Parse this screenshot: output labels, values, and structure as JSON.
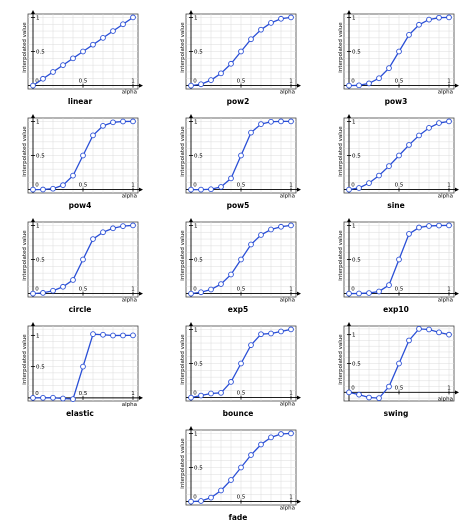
{
  "colors": {
    "line": "#2a4fd6",
    "marker_fill": "#ffffff",
    "axis": "#000000",
    "grid": "#dcdcdc"
  },
  "chart_data": [
    {
      "type": "line",
      "title": "linear",
      "xlabel": "alpha",
      "ylabel": "interpolated value",
      "x_ticks": [
        "0",
        "0.5",
        "1"
      ],
      "y_ticks": [
        "0",
        "0.5",
        "1"
      ],
      "xlim": [
        -0.05,
        1.05
      ],
      "ylim": [
        -0.05,
        1.05
      ],
      "grid": true,
      "x": [
        0,
        0.1,
        0.2,
        0.3,
        0.4,
        0.5,
        0.6,
        0.7,
        0.8,
        0.9,
        1
      ],
      "values": [
        0,
        0.1,
        0.2,
        0.3,
        0.4,
        0.5,
        0.6,
        0.7,
        0.8,
        0.9,
        1
      ]
    },
    {
      "type": "line",
      "title": "pow2",
      "xlabel": "alpha",
      "ylabel": "interpolated value",
      "x_ticks": [
        "0",
        "0.5",
        "1"
      ],
      "y_ticks": [
        "0",
        "0.5",
        "1"
      ],
      "xlim": [
        -0.05,
        1.05
      ],
      "ylim": [
        -0.05,
        1.05
      ],
      "grid": true,
      "x": [
        0,
        0.1,
        0.2,
        0.3,
        0.4,
        0.5,
        0.6,
        0.7,
        0.8,
        0.9,
        1
      ],
      "values": [
        0,
        0.02,
        0.08,
        0.18,
        0.32,
        0.5,
        0.68,
        0.82,
        0.92,
        0.98,
        1
      ]
    },
    {
      "type": "line",
      "title": "pow3",
      "xlabel": "alpha",
      "ylabel": "interpolated value",
      "x_ticks": [
        "0",
        "0.5",
        "1"
      ],
      "y_ticks": [
        "0",
        "0.5",
        "1"
      ],
      "xlim": [
        -0.05,
        1.05
      ],
      "ylim": [
        -0.05,
        1.05
      ],
      "grid": true,
      "x": [
        0,
        0.1,
        0.2,
        0.3,
        0.4,
        0.5,
        0.6,
        0.7,
        0.8,
        0.9,
        1
      ],
      "values": [
        0,
        0.004,
        0.032,
        0.108,
        0.256,
        0.5,
        0.744,
        0.892,
        0.968,
        0.996,
        1
      ]
    },
    {
      "type": "line",
      "title": "pow4",
      "xlabel": "alpha",
      "ylabel": "interpolated value",
      "x_ticks": [
        "0",
        "0.5",
        "1"
      ],
      "y_ticks": [
        "0",
        "0.5",
        "1"
      ],
      "xlim": [
        -0.05,
        1.05
      ],
      "ylim": [
        -0.05,
        1.05
      ],
      "grid": true,
      "x": [
        0,
        0.1,
        0.2,
        0.3,
        0.4,
        0.5,
        0.6,
        0.7,
        0.8,
        0.9,
        1
      ],
      "values": [
        0,
        0.001,
        0.013,
        0.065,
        0.205,
        0.5,
        0.795,
        0.935,
        0.987,
        0.999,
        1
      ]
    },
    {
      "type": "line",
      "title": "pow5",
      "xlabel": "alpha",
      "ylabel": "interpolated value",
      "x_ticks": [
        "0",
        "0.5",
        "1"
      ],
      "y_ticks": [
        "0",
        "0.5",
        "1"
      ],
      "xlim": [
        -0.05,
        1.05
      ],
      "ylim": [
        -0.05,
        1.05
      ],
      "grid": true,
      "x": [
        0,
        0.1,
        0.2,
        0.3,
        0.4,
        0.5,
        0.6,
        0.7,
        0.8,
        0.9,
        1
      ],
      "values": [
        0,
        0,
        0.005,
        0.039,
        0.164,
        0.5,
        0.836,
        0.961,
        0.995,
        1,
        1
      ]
    },
    {
      "type": "line",
      "title": "sine",
      "xlabel": "alpha",
      "ylabel": "interpolated value",
      "x_ticks": [
        "0",
        "0.5",
        "1"
      ],
      "y_ticks": [
        "0",
        "0.5",
        "1"
      ],
      "xlim": [
        -0.05,
        1.05
      ],
      "ylim": [
        -0.05,
        1.05
      ],
      "grid": true,
      "x": [
        0,
        0.1,
        0.2,
        0.3,
        0.4,
        0.5,
        0.6,
        0.7,
        0.8,
        0.9,
        1
      ],
      "values": [
        0,
        0.024,
        0.095,
        0.206,
        0.345,
        0.5,
        0.655,
        0.794,
        0.905,
        0.976,
        1
      ]
    },
    {
      "type": "line",
      "title": "circle",
      "xlabel": "alpha",
      "ylabel": "interpolated value",
      "x_ticks": [
        "0",
        "0.5",
        "1"
      ],
      "y_ticks": [
        "0",
        "0.5",
        "1"
      ],
      "xlim": [
        -0.05,
        1.05
      ],
      "ylim": [
        -0.05,
        1.05
      ],
      "grid": true,
      "x": [
        0,
        0.1,
        0.2,
        0.3,
        0.4,
        0.5,
        0.6,
        0.7,
        0.8,
        0.9,
        1
      ],
      "values": [
        0,
        0.01,
        0.042,
        0.1,
        0.2,
        0.5,
        0.8,
        0.9,
        0.958,
        0.99,
        1
      ]
    },
    {
      "type": "line",
      "title": "exp5",
      "xlabel": "alpha",
      "ylabel": "interpolated value",
      "x_ticks": [
        "0",
        "0.5",
        "1"
      ],
      "y_ticks": [
        "0",
        "0.5",
        "1"
      ],
      "xlim": [
        -0.05,
        1.05
      ],
      "ylim": [
        -0.05,
        1.05
      ],
      "grid": true,
      "x": [
        0,
        0.1,
        0.2,
        0.3,
        0.4,
        0.5,
        0.6,
        0.7,
        0.8,
        0.9,
        1
      ],
      "values": [
        0,
        0.02,
        0.06,
        0.14,
        0.28,
        0.5,
        0.72,
        0.86,
        0.94,
        0.98,
        1
      ]
    },
    {
      "type": "line",
      "title": "exp10",
      "xlabel": "alpha",
      "ylabel": "interpolated value",
      "x_ticks": [
        "0",
        "0.5",
        "1"
      ],
      "y_ticks": [
        "0",
        "0.5",
        "1"
      ],
      "xlim": [
        -0.05,
        1.05
      ],
      "ylim": [
        -0.05,
        1.05
      ],
      "grid": true,
      "x": [
        0,
        0.1,
        0.2,
        0.3,
        0.4,
        0.5,
        0.6,
        0.7,
        0.8,
        0.9,
        1
      ],
      "values": [
        0,
        0.002,
        0.008,
        0.031,
        0.125,
        0.5,
        0.875,
        0.969,
        0.992,
        0.998,
        1
      ]
    },
    {
      "type": "line",
      "title": "elastic",
      "xlabel": "alpha",
      "ylabel": "interpolated value",
      "x_ticks": [
        "0",
        "0.5",
        "1"
      ],
      "y_ticks": [
        "0",
        "0.5",
        "1"
      ],
      "xlim": [
        -0.05,
        1.05
      ],
      "ylim": [
        -0.05,
        1.15
      ],
      "grid": true,
      "x": [
        0,
        0.1,
        0.2,
        0.3,
        0.4,
        0.5,
        0.6,
        0.7,
        0.8,
        0.9,
        1
      ],
      "values": [
        0,
        0.001,
        0.002,
        -0.01,
        -0.02,
        0.5,
        1.02,
        1.01,
        0.998,
        0.999,
        1
      ]
    },
    {
      "type": "line",
      "title": "bounce",
      "xlabel": "alpha",
      "ylabel": "interpolated value",
      "x_ticks": [
        "0",
        "0.5",
        "1"
      ],
      "y_ticks": [
        "0",
        "0.5",
        "1"
      ],
      "xlim": [
        -0.05,
        1.05
      ],
      "ylim": [
        -0.05,
        1.05
      ],
      "grid": true,
      "x": [
        0,
        0.1,
        0.2,
        0.3,
        0.4,
        0.5,
        0.6,
        0.7,
        0.8,
        0.9,
        1
      ],
      "values": [
        0,
        0.03,
        0.06,
        0.07,
        0.23,
        0.5,
        0.77,
        0.93,
        0.94,
        0.97,
        1
      ]
    },
    {
      "type": "line",
      "title": "swing",
      "xlabel": "alpha",
      "ylabel": "interpolated value",
      "x_ticks": [
        "0",
        "0.5",
        "1"
      ],
      "y_ticks": [
        "0",
        "0.5",
        "1"
      ],
      "xlim": [
        -0.05,
        1.05
      ],
      "ylim": [
        -0.15,
        1.15
      ],
      "grid": true,
      "x": [
        0,
        0.1,
        0.2,
        0.3,
        0.4,
        0.5,
        0.6,
        0.7,
        0.8,
        0.9,
        1
      ],
      "values": [
        0,
        -0.04,
        -0.09,
        -0.1,
        0.1,
        0.5,
        0.9,
        1.1,
        1.09,
        1.04,
        1
      ]
    },
    {
      "type": "line",
      "title": "fade",
      "xlabel": "alpha",
      "ylabel": "interpolated value",
      "x_ticks": [
        "0",
        "0.5",
        "1"
      ],
      "y_ticks": [
        "0",
        "0.5",
        "1"
      ],
      "xlim": [
        -0.05,
        1.05
      ],
      "ylim": [
        -0.05,
        1.05
      ],
      "grid": true,
      "x": [
        0,
        0.1,
        0.2,
        0.3,
        0.4,
        0.5,
        0.6,
        0.7,
        0.8,
        0.9,
        1
      ],
      "values": [
        0,
        0.009,
        0.058,
        0.163,
        0.317,
        0.5,
        0.683,
        0.837,
        0.942,
        0.991,
        1
      ]
    }
  ]
}
